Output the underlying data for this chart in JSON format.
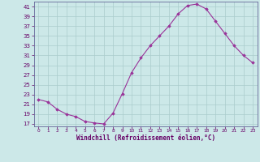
{
  "x": [
    0,
    1,
    2,
    3,
    4,
    5,
    6,
    7,
    8,
    9,
    10,
    11,
    12,
    13,
    14,
    15,
    16,
    17,
    18,
    19,
    20,
    21,
    22,
    23
  ],
  "y": [
    22,
    21.5,
    20,
    19,
    18.5,
    17.5,
    17.2,
    17.0,
    19.2,
    23.2,
    27.5,
    30.5,
    33.0,
    35.0,
    37.0,
    39.5,
    41.2,
    41.5,
    40.5,
    38.0,
    35.5,
    33.0,
    31.0,
    29.5
  ],
  "line_color": "#993399",
  "marker_color": "#993399",
  "bg_color": "#cce8e8",
  "grid_color": "#aacccc",
  "xlabel": "Windchill (Refroidissement éolien,°C)",
  "ytick_min": 17,
  "ytick_max": 41,
  "ytick_step": 2,
  "tick_color": "#660066",
  "xlabel_color": "#660066",
  "spine_color": "#666699",
  "xlim_min": -0.5,
  "xlim_max": 23.5,
  "ylim_min": 16.5,
  "ylim_max": 42.0
}
